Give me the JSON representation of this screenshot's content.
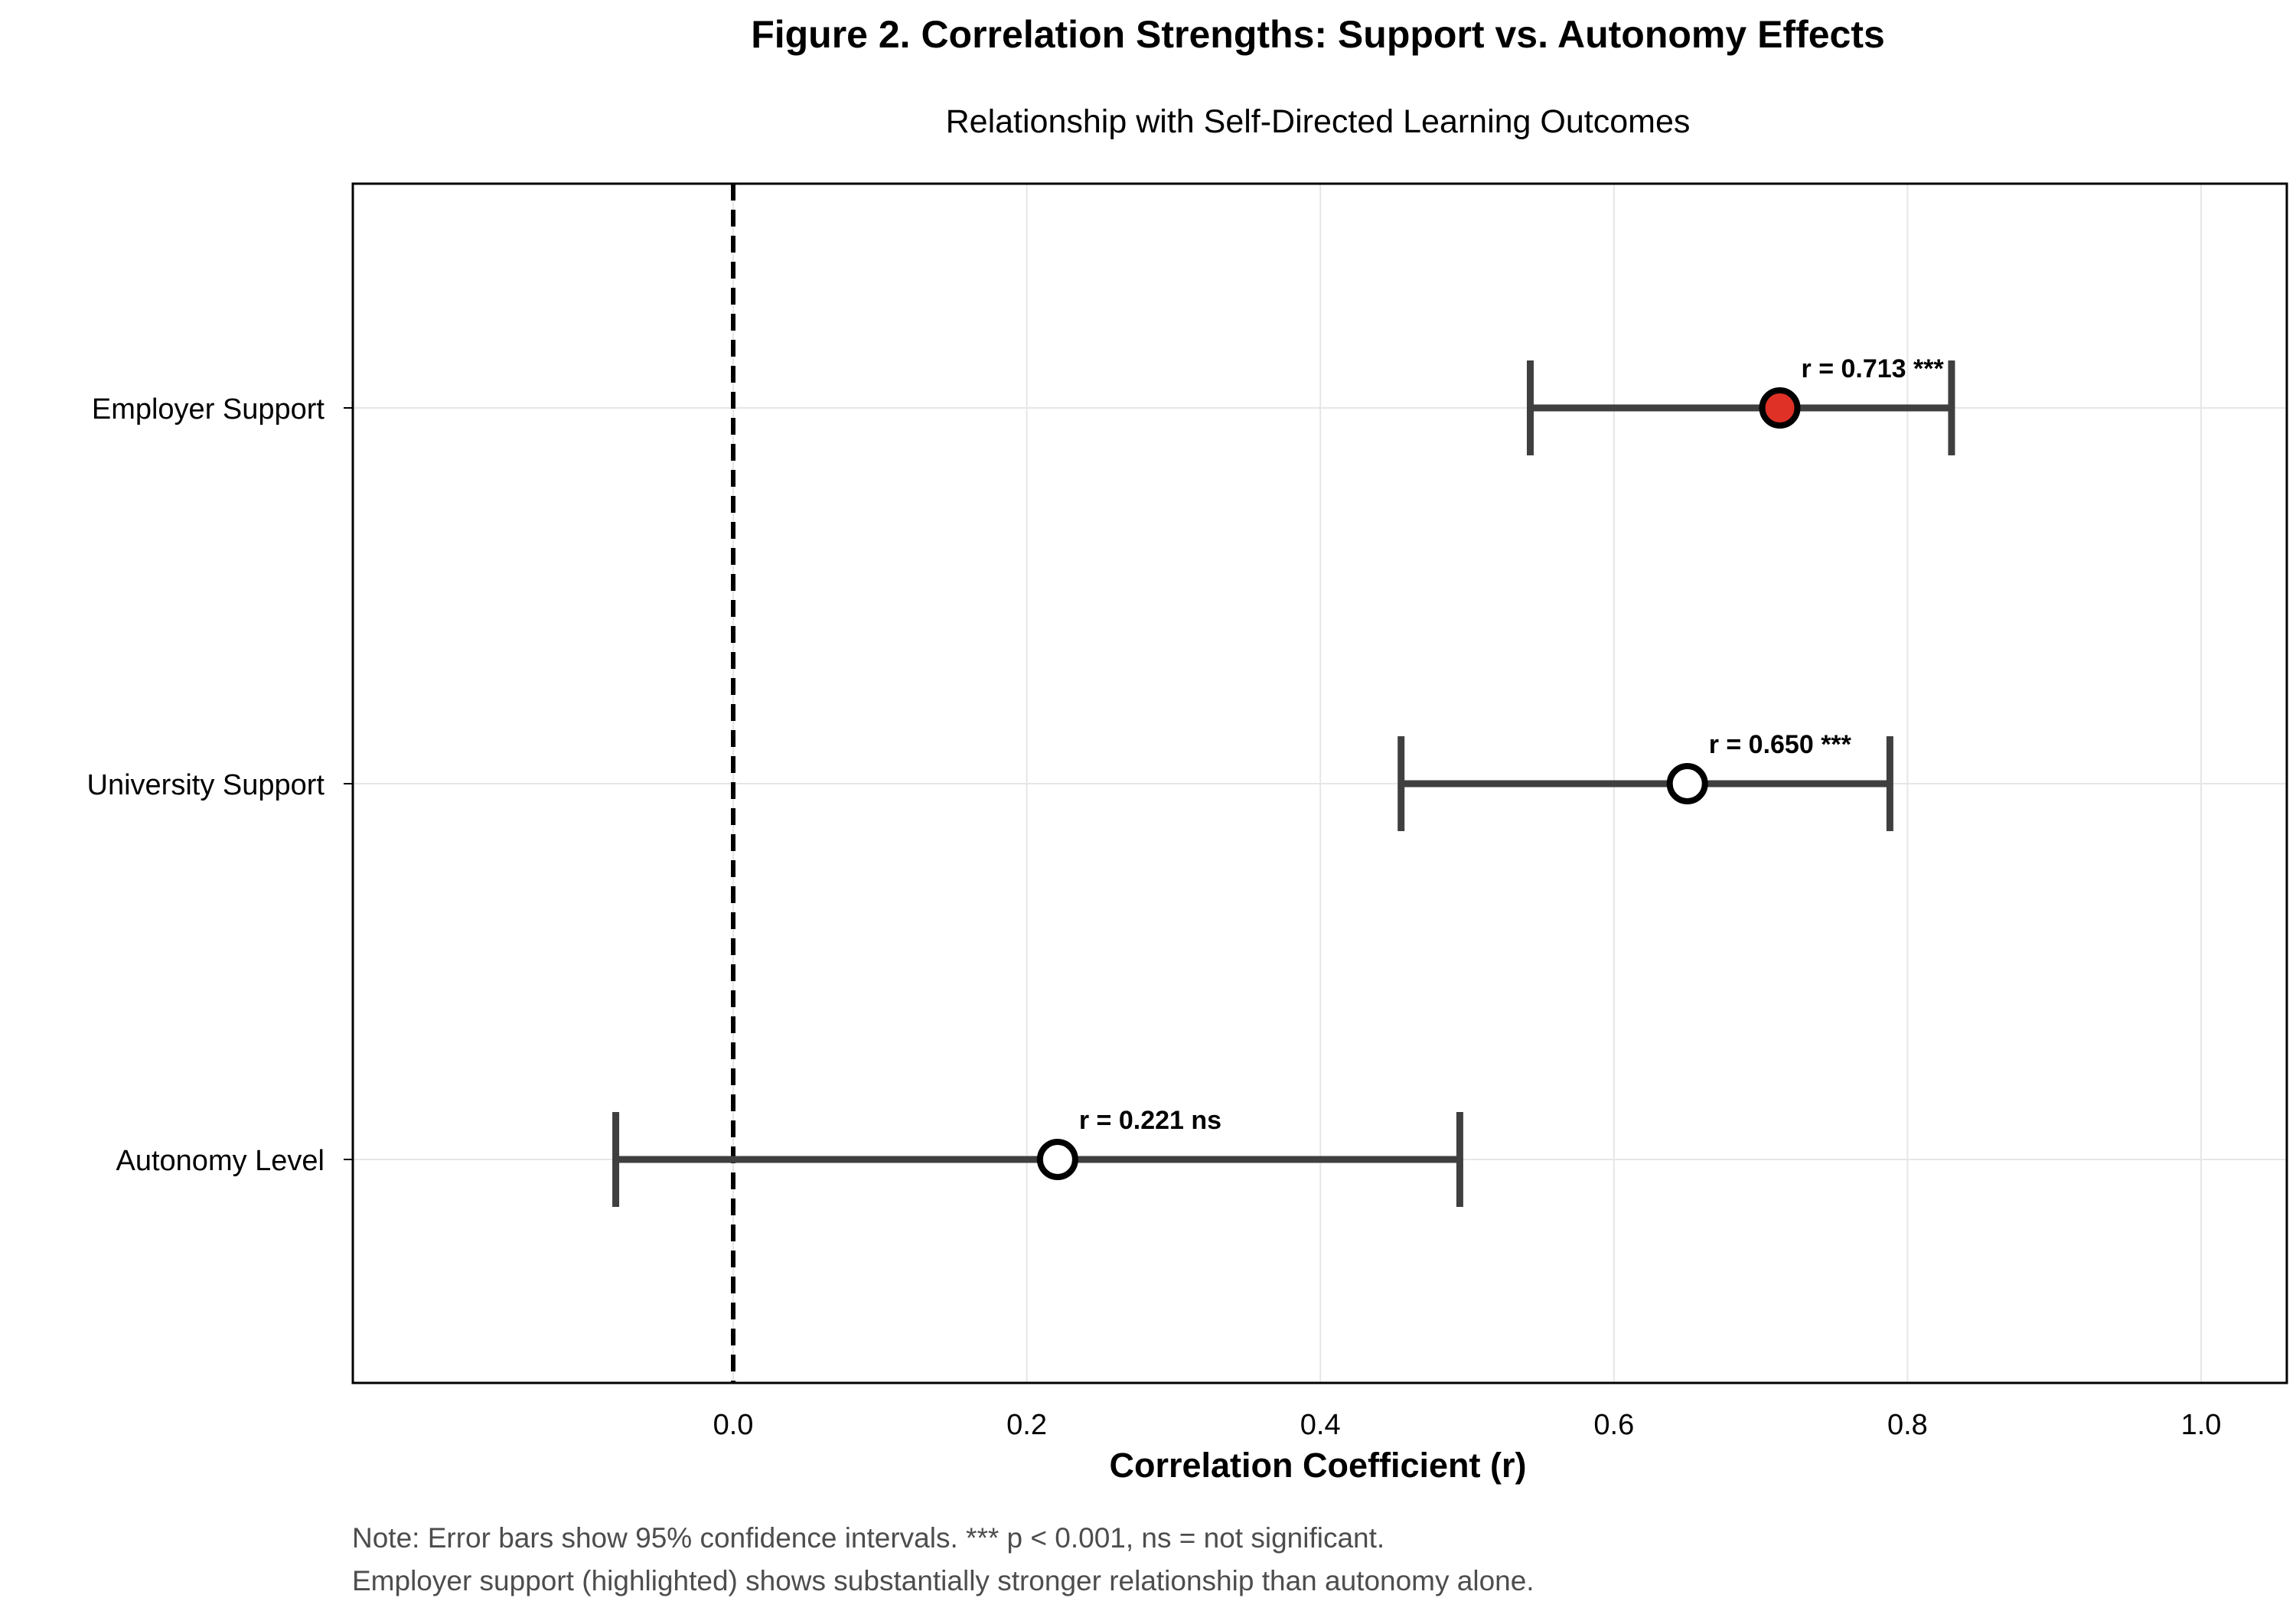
{
  "chart_data": {
    "type": "forest",
    "title": "Figure 2. Correlation Strengths: Support vs. Autonomy Effects",
    "subtitle": "Relationship with Self-Directed Learning Outcomes",
    "xlabel": "Correlation Coefficient (r)",
    "xlim": [
      -0.26,
      1.06
    ],
    "xticks": [
      0.0,
      0.2,
      0.4,
      0.6,
      0.8,
      1.0
    ],
    "xtick_labels": [
      "0.0",
      "0.2",
      "0.4",
      "0.6",
      "0.8",
      "1.0"
    ],
    "reference_line": 0.0,
    "grid": true,
    "series": [
      {
        "label": "Employer Support",
        "r": 0.713,
        "ci_low": 0.543,
        "ci_high": 0.83,
        "annotation": "r = 0.713 ***",
        "highlight": true
      },
      {
        "label": "University Support",
        "r": 0.65,
        "ci_low": 0.455,
        "ci_high": 0.788,
        "annotation": "r = 0.650 ***",
        "highlight": false
      },
      {
        "label": "Autonomy Level",
        "r": 0.221,
        "ci_low": -0.08,
        "ci_high": 0.495,
        "annotation": "r = 0.221 ns",
        "highlight": false
      }
    ],
    "notes": [
      "Note: Error bars show 95% confidence intervals. *** p < 0.001, ns = not significant.",
      "Employer support (highlighted) shows substantially stronger relationship than autonomy alone."
    ],
    "colors": {
      "highlight_fill": "#e03127",
      "marker_fill": "#ffffff",
      "marker_edge": "#000000",
      "errorbar": "#3f3f3f",
      "grid": "#e6e6e6",
      "reference": "#000000",
      "note_text": "#4d4d4d"
    }
  }
}
